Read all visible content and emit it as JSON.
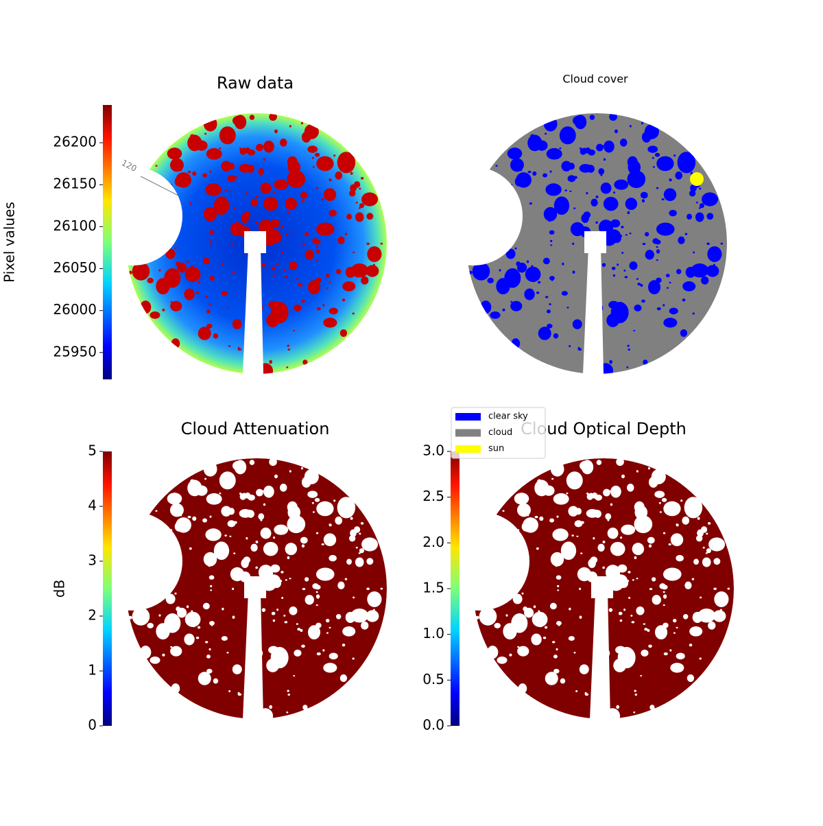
{
  "chart_data": [
    {
      "type": "image",
      "title": "Raw data",
      "colorbar_label": "Pixel values",
      "colormap": "jet",
      "ylim": [
        25918,
        26245
      ],
      "yticks": [
        25950,
        26000,
        26050,
        26100,
        26150,
        26200
      ],
      "annotations": [
        "120"
      ]
    },
    {
      "type": "image",
      "title": "Cloud cover",
      "legend": [
        {
          "name": "clear sky",
          "color": "#0000ff"
        },
        {
          "name": "cloud",
          "color": "#808080"
        },
        {
          "name": "sun",
          "color": "#ffff00"
        }
      ]
    },
    {
      "type": "image",
      "title": "Cloud Attenuation",
      "colorbar_label": "dB",
      "colormap": "jet",
      "ylim": [
        0,
        5
      ],
      "yticks": [
        0,
        1,
        2,
        3,
        4,
        5
      ]
    },
    {
      "type": "image",
      "title": "Cloud Optical Depth",
      "colormap": "jet",
      "ylim": [
        0,
        3
      ],
      "yticks": [
        {
          "value": 0,
          "label": "0.0"
        },
        0.5,
        {
          "value": 1,
          "label": "1.0"
        },
        1.5,
        {
          "value": 2,
          "label": "2.0"
        },
        2.5,
        {
          "value": 3,
          "label": "3.0"
        }
      ]
    }
  ]
}
